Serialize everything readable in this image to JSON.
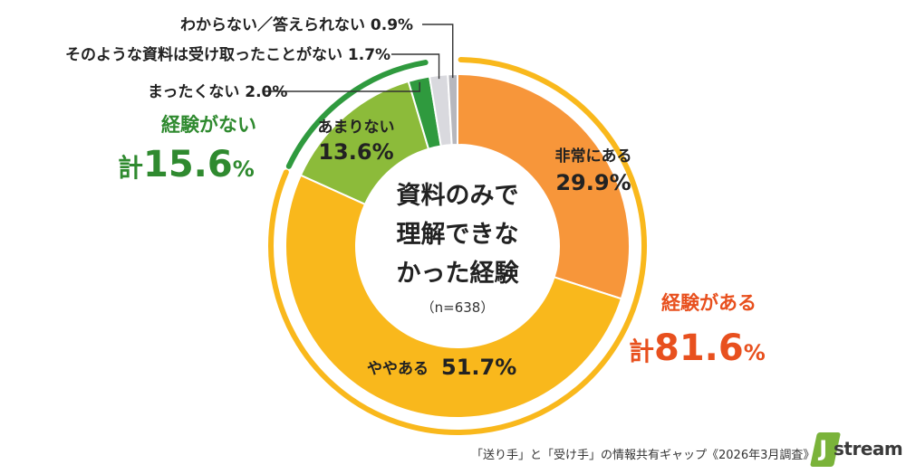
{
  "chart_data": {
    "type": "pie",
    "center_title": [
      "資料のみで",
      "理解できな",
      "かった経験"
    ],
    "center_note": "（n=638）",
    "slices": [
      {
        "name": "非常にある",
        "value": 29.9,
        "value_label": "29.9%",
        "color": "#f7963a"
      },
      {
        "name": "ややある",
        "value": 51.7,
        "value_label": "51.7%",
        "color": "#f9b81c"
      },
      {
        "name": "あまりない",
        "value": 13.6,
        "value_label": "13.6%",
        "color": "#8cbb3a"
      },
      {
        "name": "まったくない",
        "value": 2.0,
        "value_label": "2.0%",
        "color": "#2f9a3e"
      },
      {
        "name": "そのような資料は受け取ったことがない",
        "value": 1.7,
        "value_label": "1.7%",
        "color": "#d9d9de"
      },
      {
        "name": "わからない／答えられない",
        "value": 0.9,
        "value_label": "0.9%",
        "color": "#b7b7bd"
      }
    ],
    "groups": [
      {
        "name": "経験がある",
        "kei": "計",
        "total": "81.6",
        "pct": "%",
        "color": "#e8501e",
        "ring_color": "#f9b81c"
      },
      {
        "name": "経験がない",
        "kei": "計",
        "total": "15.6",
        "pct": "%",
        "color": "#2f8a2f",
        "ring_color": "#2f9a3e"
      }
    ]
  },
  "footer": {
    "source": "「送り手」と「受け手」の情報共有ギャップ《2026年3月調査》",
    "logo_text": "stream"
  }
}
